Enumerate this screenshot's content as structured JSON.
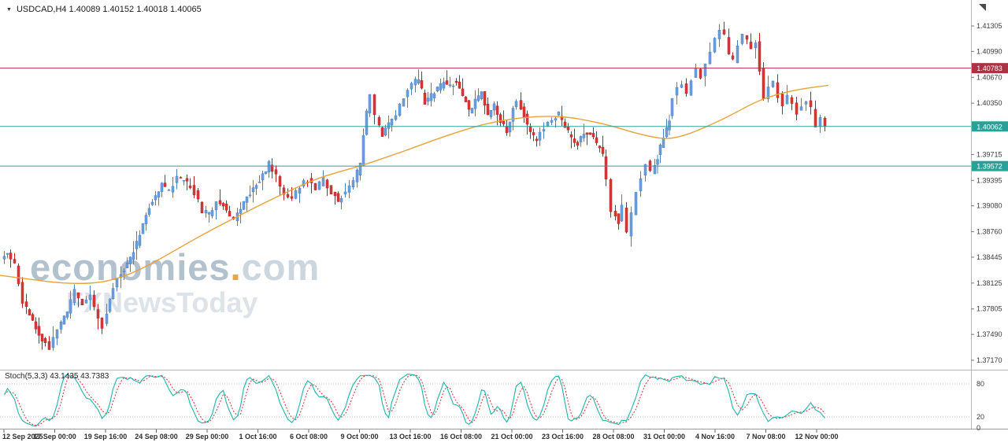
{
  "header": {
    "collapse_icon": "▼",
    "symbol_info": "USDCAD,H4 1.40089 1.40152 1.40018 1.40065"
  },
  "watermark": {
    "brand": "economies",
    "dot": ".",
    "tld": "com",
    "tagline": "FXNewsToday"
  },
  "indicator": {
    "label": "Stoch(5,3,3) 43.1435 43.7383"
  },
  "colors": {
    "bull": "#6f9ed6",
    "bull_border": "#4a80bf",
    "bear": "#cf3b3b",
    "bear_border": "#b22222",
    "ma": "#e8a23c",
    "resistance": "#aa3344",
    "support": "#2aa198",
    "stoch_k": "#20b2aa",
    "stoch_d": "#cc3333",
    "axis_text": "#3a3a3a",
    "separator": "#b5b5b5",
    "level_dotted": "#c0c0c0"
  },
  "chart_data": {
    "type": "candlestick",
    "symbol": "USDCAD",
    "timeframe": "H4",
    "ohlc_current": {
      "open": 1.40089,
      "high": 1.40152,
      "low": 1.40018,
      "close": 1.40065
    },
    "y_axis": {
      "min": 1.3717,
      "max": 1.41305,
      "ticks": [
        "1.41305",
        "1.40990",
        "1.40670",
        "1.40350",
        "1.39715",
        "1.39395",
        "1.39080",
        "1.38760",
        "1.38445",
        "1.38125",
        "1.37805",
        "1.37490",
        "1.37170"
      ]
    },
    "x_axis": {
      "labels": [
        "12 Sep 2025",
        "17 Sep 00:00",
        "19 Sep 16:00",
        "24 Sep 08:00",
        "29 Sep 00:00",
        "1 Oct 16:00",
        "6 Oct 08:00",
        "9 Oct 00:00",
        "13 Oct 16:00",
        "16 Oct 08:00",
        "21 Oct 00:00",
        "23 Oct 16:00",
        "28 Oct 08:00",
        "31 Oct 00:00",
        "4 Nov 16:00",
        "7 Nov 08:00",
        "12 Nov 00:00"
      ]
    },
    "levels": [
      {
        "value": 1.40783,
        "label": "1.40783",
        "role": "resistance",
        "color": "#aa3344"
      },
      {
        "value": 1.40062,
        "label": "1.40062",
        "role": "current-price",
        "color": "#2aa198"
      },
      {
        "value": 1.39572,
        "label": "1.39572",
        "role": "support",
        "color": "#2aa198"
      }
    ],
    "price_swings": [
      [
        4,
        1.3842
      ],
      [
        12,
        1.3849
      ],
      [
        22,
        1.3836
      ],
      [
        32,
        1.379
      ],
      [
        44,
        1.3763
      ],
      [
        56,
        1.3744
      ],
      [
        66,
        1.3733
      ],
      [
        76,
        1.3756
      ],
      [
        88,
        1.3776
      ],
      [
        98,
        1.3802
      ],
      [
        108,
        1.3786
      ],
      [
        118,
        1.3797
      ],
      [
        128,
        1.3768
      ],
      [
        134,
        1.3759
      ],
      [
        142,
        1.3792
      ],
      [
        152,
        1.382
      ],
      [
        164,
        1.3836
      ],
      [
        176,
        1.3862
      ],
      [
        188,
        1.3898
      ],
      [
        200,
        1.3922
      ],
      [
        208,
        1.3934
      ],
      [
        218,
        1.3926
      ],
      [
        228,
        1.3944
      ],
      [
        240,
        1.3936
      ],
      [
        250,
        1.3924
      ],
      [
        260,
        1.3902
      ],
      [
        268,
        1.3897
      ],
      [
        278,
        1.3914
      ],
      [
        290,
        1.3904
      ],
      [
        300,
        1.389
      ],
      [
        312,
        1.3912
      ],
      [
        324,
        1.393
      ],
      [
        336,
        1.3946
      ],
      [
        344,
        1.396
      ],
      [
        354,
        1.3944
      ],
      [
        364,
        1.3922
      ],
      [
        374,
        1.392
      ],
      [
        384,
        1.3933
      ],
      [
        394,
        1.394
      ],
      [
        404,
        1.393
      ],
      [
        414,
        1.3941
      ],
      [
        424,
        1.3926
      ],
      [
        432,
        1.3915
      ],
      [
        442,
        1.3926
      ],
      [
        452,
        1.3938
      ],
      [
        460,
        1.396
      ],
      [
        468,
        1.4026
      ],
      [
        474,
        1.4043
      ],
      [
        480,
        1.4018
      ],
      [
        488,
        1.3997
      ],
      [
        496,
        1.401
      ],
      [
        506,
        1.4022
      ],
      [
        516,
        1.4044
      ],
      [
        526,
        1.4058
      ],
      [
        534,
        1.4066
      ],
      [
        542,
        1.4036
      ],
      [
        550,
        1.4044
      ],
      [
        558,
        1.4052
      ],
      [
        566,
        1.406
      ],
      [
        574,
        1.4057
      ],
      [
        582,
        1.4062
      ],
      [
        590,
        1.4046
      ],
      [
        598,
        1.4026
      ],
      [
        606,
        1.4037
      ],
      [
        614,
        1.405
      ],
      [
        622,
        1.4018
      ],
      [
        630,
        1.4032
      ],
      [
        638,
        1.4014
      ],
      [
        646,
        1.4001
      ],
      [
        654,
        1.4028
      ],
      [
        660,
        1.404
      ],
      [
        668,
        1.402
      ],
      [
        676,
        1.3998
      ],
      [
        684,
        1.399
      ],
      [
        694,
        1.4006
      ],
      [
        704,
        1.4016
      ],
      [
        712,
        1.4022
      ],
      [
        720,
        1.4006
      ],
      [
        728,
        1.3992
      ],
      [
        736,
        1.3985
      ],
      [
        744,
        1.3996
      ],
      [
        752,
        1.3999
      ],
      [
        760,
        1.3985
      ],
      [
        768,
        1.397
      ],
      [
        774,
        1.3938
      ],
      [
        780,
        1.3903
      ],
      [
        788,
        1.3888
      ],
      [
        794,
        1.3908
      ],
      [
        800,
        1.3872
      ],
      [
        806,
        1.3898
      ],
      [
        812,
        1.3926
      ],
      [
        818,
        1.3944
      ],
      [
        824,
        1.396
      ],
      [
        830,
        1.395
      ],
      [
        837,
        1.3968
      ],
      [
        845,
        1.3992
      ],
      [
        852,
        1.4016
      ],
      [
        858,
        1.4042
      ],
      [
        864,
        1.4054
      ],
      [
        870,
        1.4061
      ],
      [
        876,
        1.4047
      ],
      [
        882,
        1.4066
      ],
      [
        888,
        1.4076
      ],
      [
        894,
        1.4069
      ],
      [
        900,
        1.4086
      ],
      [
        906,
        1.4101
      ],
      [
        912,
        1.4112
      ],
      [
        918,
        1.4124
      ],
      [
        924,
        1.4117
      ],
      [
        929,
        1.4097
      ],
      [
        935,
        1.4088
      ],
      [
        941,
        1.4106
      ],
      [
        947,
        1.4121
      ],
      [
        952,
        1.4111
      ],
      [
        958,
        1.41
      ],
      [
        963,
        1.4113
      ],
      [
        968,
        1.4078
      ],
      [
        974,
        1.404
      ],
      [
        980,
        1.4053
      ],
      [
        986,
        1.4059
      ],
      [
        992,
        1.4045
      ],
      [
        998,
        1.4031
      ],
      [
        1004,
        1.4045
      ],
      [
        1010,
        1.4037
      ],
      [
        1016,
        1.4023
      ],
      [
        1022,
        1.4031
      ],
      [
        1028,
        1.4039
      ],
      [
        1034,
        1.4027
      ],
      [
        1040,
        1.4003
      ],
      [
        1046,
        1.4015
      ],
      [
        1052,
        1.40065
      ]
    ],
    "ma_points": [
      [
        0,
        1.3822
      ],
      [
        40,
        1.3817
      ],
      [
        80,
        1.3812
      ],
      [
        120,
        1.3812
      ],
      [
        150,
        1.3818
      ],
      [
        180,
        1.383
      ],
      [
        210,
        1.3846
      ],
      [
        240,
        1.3863
      ],
      [
        270,
        1.3879
      ],
      [
        300,
        1.3894
      ],
      [
        330,
        1.3909
      ],
      [
        360,
        1.3923
      ],
      [
        400,
        1.3941
      ],
      [
        430,
        1.395
      ],
      [
        460,
        1.3958
      ],
      [
        490,
        1.3968
      ],
      [
        520,
        1.3978
      ],
      [
        550,
        1.3989
      ],
      [
        580,
        1.3999
      ],
      [
        610,
        1.4008
      ],
      [
        650,
        1.4016
      ],
      [
        690,
        1.4019
      ],
      [
        720,
        1.4018
      ],
      [
        750,
        1.4013
      ],
      [
        780,
        1.4006
      ],
      [
        810,
        1.3997
      ],
      [
        845,
        1.399
      ],
      [
        870,
        1.3995
      ],
      [
        900,
        1.4007
      ],
      [
        930,
        1.4021
      ],
      [
        960,
        1.4037
      ],
      [
        990,
        1.4047
      ],
      [
        1020,
        1.4053
      ],
      [
        1052,
        1.4057
      ]
    ],
    "stoch": {
      "name": "Stoch(5,3,3)",
      "k_value": 43.1435,
      "d_value": 43.7383,
      "levels": [
        80,
        20
      ],
      "scale_labels": [
        80,
        20,
        0
      ],
      "lookback": 5
    },
    "seed": 11
  }
}
